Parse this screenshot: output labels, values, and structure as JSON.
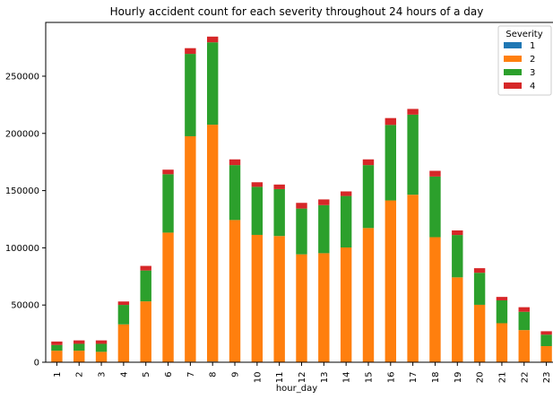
{
  "chart_data": {
    "type": "bar",
    "stacked": true,
    "title": "Hourly accident count for each severity throughout 24 hours of a day",
    "xlabel": "hour_day",
    "ylabel": "",
    "ylim": [
      0,
      297000
    ],
    "yticks": [
      0,
      50000,
      100000,
      150000,
      200000,
      250000
    ],
    "legend_title": "Severity",
    "legend_position": "top-right",
    "grid": false,
    "categories": [
      "1",
      "2",
      "3",
      "4",
      "5",
      "6",
      "7",
      "8",
      "9",
      "10",
      "11",
      "12",
      "13",
      "14",
      "15",
      "16",
      "17",
      "18",
      "19",
      "20",
      "21",
      "22",
      "23"
    ],
    "series": [
      {
        "name": "1",
        "color": "#1f77b4",
        "values": [
          100,
          100,
          100,
          100,
          200,
          300,
          500,
          600,
          300,
          300,
          300,
          300,
          300,
          300,
          300,
          400,
          400,
          300,
          200,
          200,
          100,
          100,
          100
        ]
      },
      {
        "name": "2",
        "color": "#ff7f0e",
        "values": [
          10000,
          10000,
          9000,
          33000,
          53000,
          113000,
          197000,
          207000,
          124000,
          111000,
          110000,
          94000,
          95000,
          100000,
          117000,
          141000,
          146000,
          109000,
          74000,
          50000,
          34000,
          28000,
          14000
        ]
      },
      {
        "name": "3",
        "color": "#2ca02c",
        "values": [
          5000,
          6000,
          7000,
          17000,
          27000,
          51000,
          72000,
          72000,
          48000,
          42000,
          41000,
          40000,
          42000,
          45000,
          55000,
          66000,
          70000,
          53000,
          37000,
          28000,
          20000,
          16000,
          10000
        ]
      },
      {
        "name": "4",
        "color": "#d62728",
        "values": [
          3000,
          3000,
          3000,
          3000,
          4000,
          4000,
          5000,
          5000,
          5000,
          4000,
          4000,
          5000,
          5000,
          4000,
          5000,
          6000,
          5000,
          5000,
          4000,
          4000,
          3000,
          4000,
          3000
        ]
      }
    ]
  }
}
